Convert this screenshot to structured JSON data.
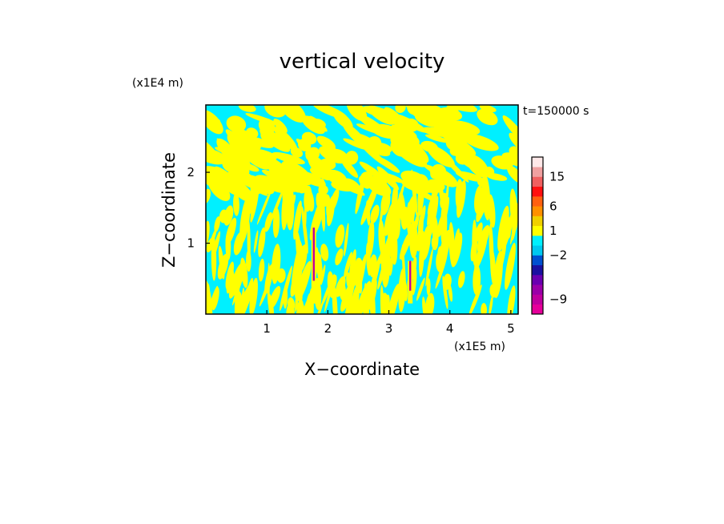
{
  "chart_data": {
    "type": "heatmap",
    "title": "vertical velocity",
    "xlabel": "X−coordinate",
    "ylabel": "Z−coordinate",
    "x_unit": "(x1E5 m)",
    "y_unit": "(x1E4 m)",
    "time_label": "t=150000 s",
    "xlim": [
      0.0,
      5.12
    ],
    "ylim": [
      0.0,
      2.95
    ],
    "x_ticks": [
      1,
      2,
      3,
      4,
      5
    ],
    "y_ticks": [
      1,
      2
    ],
    "colorbar": {
      "colors": [
        "#e6009a",
        "#c0009e",
        "#9b00a8",
        "#6a00b0",
        "#1a10a0",
        "#0050d0",
        "#00c8f0",
        "#00f0ff",
        "#ffff00",
        "#f0d000",
        "#ff9000",
        "#ff6010",
        "#ff1010",
        "#f06060",
        "#f0a0a0",
        "#ffe8e8"
      ],
      "tick_labels": [
        {
          "label": "−9",
          "value": -9
        },
        {
          "label": "−2",
          "value": -2
        },
        {
          "label": "1",
          "value": 1
        },
        {
          "label": "6",
          "value": 6
        },
        {
          "label": "15",
          "value": 15
        }
      ],
      "tick_positions": [
        1.5,
        6,
        8.5,
        11,
        14
      ]
    },
    "dominant_fields": {
      "positive_color": "#ffff00",
      "negative_color": "#00f0ff"
    },
    "updrafts": [
      {
        "x": 1.77,
        "z_top": 1.22,
        "color": "#c0009e"
      },
      {
        "x": 3.35,
        "z_top": 0.75,
        "color": "#c0009e"
      }
    ]
  }
}
